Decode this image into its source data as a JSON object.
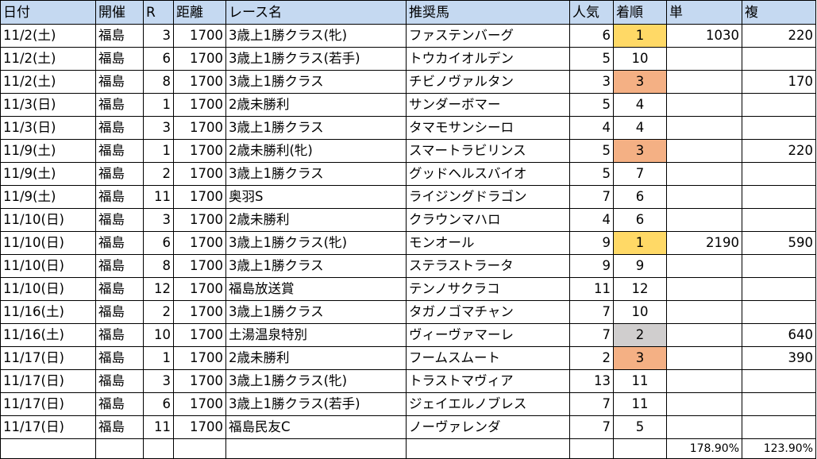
{
  "headers": [
    "日付",
    "開催",
    "R",
    "距離",
    "レース名",
    "推奨馬",
    "人気",
    "着順",
    "単",
    "複"
  ],
  "rows": [
    {
      "date": "11/2(土)",
      "venue": "福島",
      "race": "3",
      "distance": "1700",
      "race_name": "3歳上1勝クラス(牝)",
      "horse": "ファステンバーグ",
      "popularity": "6",
      "finish": "1",
      "win": "1030",
      "place": "220",
      "highlight": "win"
    },
    {
      "date": "11/2(土)",
      "venue": "福島",
      "race": "6",
      "distance": "1700",
      "race_name": "3歳上1勝クラス(若手)",
      "horse": "トウカイオルデン",
      "popularity": "5",
      "finish": "10",
      "win": "",
      "place": "",
      "highlight": ""
    },
    {
      "date": "11/2(土)",
      "venue": "福島",
      "race": "8",
      "distance": "1700",
      "race_name": "3歳上1勝クラス",
      "horse": "チビノヴァルタン",
      "popularity": "3",
      "finish": "3",
      "win": "",
      "place": "170",
      "highlight": "place"
    },
    {
      "date": "11/3(日)",
      "venue": "福島",
      "race": "1",
      "distance": "1700",
      "race_name": "2歳未勝利",
      "horse": "サンダーボマー",
      "popularity": "5",
      "finish": "4",
      "win": "",
      "place": "",
      "highlight": ""
    },
    {
      "date": "11/3(日)",
      "venue": "福島",
      "race": "3",
      "distance": "1700",
      "race_name": "3歳上1勝クラス",
      "horse": "タマモサンシーロ",
      "popularity": "4",
      "finish": "4",
      "win": "",
      "place": "",
      "highlight": ""
    },
    {
      "date": "11/9(土)",
      "venue": "福島",
      "race": "1",
      "distance": "1700",
      "race_name": "2歳未勝利(牝)",
      "horse": "スマートラビリンス",
      "popularity": "5",
      "finish": "3",
      "win": "",
      "place": "220",
      "highlight": "place"
    },
    {
      "date": "11/9(土)",
      "venue": "福島",
      "race": "2",
      "distance": "1700",
      "race_name": "3歳上1勝クラス",
      "horse": "グッドヘルスバイオ",
      "popularity": "5",
      "finish": "7",
      "win": "",
      "place": "",
      "highlight": ""
    },
    {
      "date": "11/9(土)",
      "venue": "福島",
      "race": "11",
      "distance": "1700",
      "race_name": "奥羽S",
      "horse": "ライジングドラゴン",
      "popularity": "7",
      "finish": "6",
      "win": "",
      "place": "",
      "highlight": ""
    },
    {
      "date": "11/10(日)",
      "venue": "福島",
      "race": "3",
      "distance": "1700",
      "race_name": "2歳未勝利",
      "horse": "クラウンマハロ",
      "popularity": "4",
      "finish": "6",
      "win": "",
      "place": "",
      "highlight": ""
    },
    {
      "date": "11/10(日)",
      "venue": "福島",
      "race": "6",
      "distance": "1700",
      "race_name": "3歳上1勝クラス(牝)",
      "horse": "モンオール",
      "popularity": "9",
      "finish": "1",
      "win": "2190",
      "place": "590",
      "highlight": "win"
    },
    {
      "date": "11/10(日)",
      "venue": "福島",
      "race": "8",
      "distance": "1700",
      "race_name": "3歳上1勝クラス",
      "horse": "ステラストラータ",
      "popularity": "9",
      "finish": "9",
      "win": "",
      "place": "",
      "highlight": ""
    },
    {
      "date": "11/10(日)",
      "venue": "福島",
      "race": "12",
      "distance": "1700",
      "race_name": "福島放送賞",
      "horse": "テンノサクラコ",
      "popularity": "11",
      "finish": "12",
      "win": "",
      "place": "",
      "highlight": ""
    },
    {
      "date": "11/16(土)",
      "venue": "福島",
      "race": "2",
      "distance": "1700",
      "race_name": "3歳上1勝クラス",
      "horse": "タガノゴマチャン",
      "popularity": "7",
      "finish": "10",
      "win": "",
      "place": "",
      "highlight": ""
    },
    {
      "date": "11/16(土)",
      "venue": "福島",
      "race": "10",
      "distance": "1700",
      "race_name": "土湯温泉特別",
      "horse": "ヴィーヴァマーレ",
      "popularity": "7",
      "finish": "2",
      "win": "",
      "place": "640",
      "highlight": "second"
    },
    {
      "date": "11/17(日)",
      "venue": "福島",
      "race": "1",
      "distance": "1700",
      "race_name": "2歳未勝利",
      "horse": "フームスムート",
      "popularity": "2",
      "finish": "3",
      "win": "",
      "place": "390",
      "highlight": "place"
    },
    {
      "date": "11/17(日)",
      "venue": "福島",
      "race": "3",
      "distance": "1700",
      "race_name": "3歳上1勝クラス(牝)",
      "horse": "トラストマヴィア",
      "popularity": "13",
      "finish": "11",
      "win": "",
      "place": "",
      "highlight": ""
    },
    {
      "date": "11/17(日)",
      "venue": "福島",
      "race": "6",
      "distance": "1700",
      "race_name": "3歳上1勝クラス(若手)",
      "horse": "ジェイエルノブレス",
      "popularity": "7",
      "finish": "11",
      "win": "",
      "place": "",
      "highlight": ""
    },
    {
      "date": "11/17(日)",
      "venue": "福島",
      "race": "11",
      "distance": "1700",
      "race_name": "福島民友C",
      "horse": "ノーヴァレンダ",
      "popularity": "7",
      "finish": "5",
      "win": "",
      "place": "",
      "highlight": ""
    }
  ],
  "summary": {
    "win_return": "178.90%",
    "place_return": "123.90%"
  },
  "colors": {
    "header_bg": "#c5d9f1",
    "win": "#ffd966",
    "place": "#f4b084",
    "second": "#d0cece"
  }
}
